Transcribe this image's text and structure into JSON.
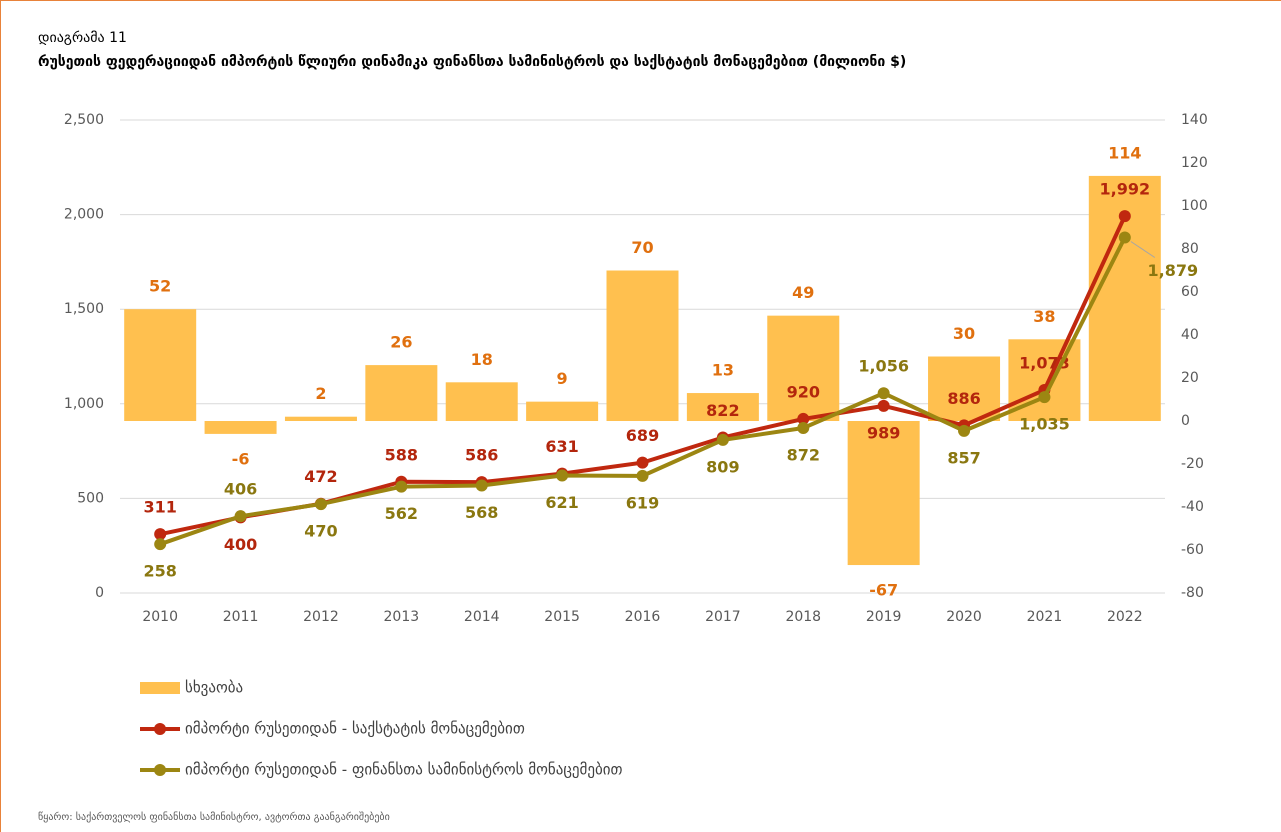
{
  "chart_data": {
    "type": "combo",
    "subtitle": "დიაგრამა 11",
    "title": "რუსეთის ფედერაციიდან იმპორტის წლიური დინამიკა ფინანსთა სამინისტროს და საქსტატის მონაცემებით (მილიონი $)",
    "source": "წყარო: საქართველოს ფინანსთა სამინისტრო, ავტორთა გაანგარიშებები",
    "categories": [
      "2010",
      "2011",
      "2012",
      "2013",
      "2014",
      "2015",
      "2016",
      "2017",
      "2018",
      "2019",
      "2020",
      "2021",
      "2022"
    ],
    "ylim": [
      0,
      2500
    ],
    "yticks": [
      0,
      500,
      {
        "value": 1000,
        "label": "1,000"
      },
      {
        "value": 1500,
        "label": "1,500"
      },
      {
        "value": 2000,
        "label": "2,000"
      },
      {
        "value": 2500,
        "label": "2,500"
      }
    ],
    "y2lim": [
      -80,
      140
    ],
    "y2ticks": [
      -80,
      -60,
      -40,
      -20,
      0,
      20,
      40,
      60,
      80,
      100,
      120,
      140
    ],
    "grid": true,
    "series": [
      {
        "name": "სხვაობა",
        "type": "bar",
        "axis": "y2",
        "color": "#ffc04f",
        "label_color": "#e0700f",
        "values": [
          52,
          -6,
          2,
          26,
          18,
          9,
          70,
          13,
          49,
          -67,
          30,
          38,
          114
        ]
      },
      {
        "name": "იმპორტი რუსეთიდან - საქსტატის მონაცემებით",
        "type": "line",
        "color": "#c0280f",
        "label_color": "#b3260d",
        "values": [
          311,
          400,
          472,
          588,
          586,
          631,
          689,
          822,
          920,
          989,
          886,
          1073,
          1992
        ],
        "value_labels": [
          "311",
          "400",
          "472",
          "588",
          "586",
          "631",
          "689",
          "822",
          "920",
          "989",
          "886",
          "1,073",
          "1,992"
        ]
      },
      {
        "name": "იმპორტი რუსეთიდან - ფინანსთა სამინისტროს მონაცემებით",
        "type": "line",
        "color": "#9c8612",
        "label_color": "#8a7710",
        "values": [
          258,
          406,
          470,
          562,
          568,
          621,
          619,
          809,
          872,
          1056,
          857,
          1035,
          1879
        ],
        "value_labels": [
          "258",
          "406",
          "470",
          "562",
          "568",
          "621",
          "619",
          "809",
          "872",
          "1,056",
          "857",
          "1,035",
          "1,879"
        ]
      }
    ]
  }
}
